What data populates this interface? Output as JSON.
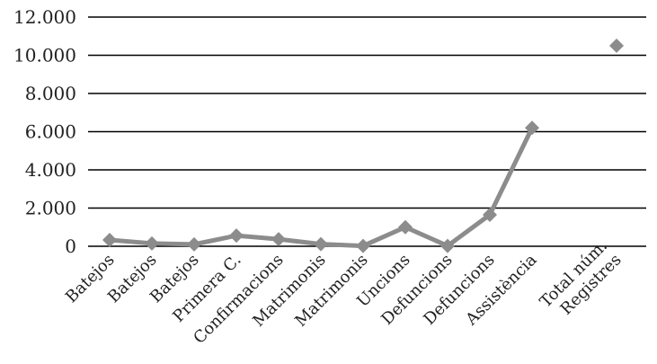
{
  "chart_data": {
    "type": "line",
    "categories": [
      "Batejos",
      "Batejos",
      "Batejos",
      "Primera C.",
      "Confirmacions",
      "Matrimonis",
      "Matrimonis",
      "Uncions",
      "Defuncions",
      "Defuncions",
      "Assistència",
      "",
      "Total núm.\nRegistres"
    ],
    "series": [
      {
        "values": [
          330,
          150,
          100,
          560,
          370,
          110,
          20,
          1000,
          20,
          1650,
          6200,
          null,
          10500
        ],
        "color": "#8c8c8c",
        "marker": "diamond"
      }
    ],
    "y_ticks": [
      {
        "value": 0,
        "label": "0"
      },
      {
        "value": 2000,
        "label": "2.000"
      },
      {
        "value": 4000,
        "label": "4.000"
      },
      {
        "value": 6000,
        "label": "6.000"
      },
      {
        "value": 8000,
        "label": "8.000"
      },
      {
        "value": 10000,
        "label": "10.000"
      },
      {
        "value": 12000,
        "label": "12.000"
      }
    ],
    "ylim": [
      0,
      12000
    ],
    "grid": true,
    "legend": "none"
  }
}
